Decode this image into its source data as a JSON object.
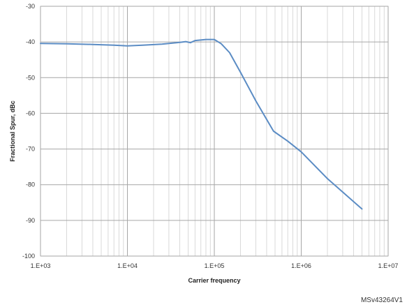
{
  "chart_data": {
    "type": "line",
    "xscale": "log",
    "xlim": [
      1000,
      10000000
    ],
    "ylim": [
      -100,
      -30
    ],
    "xlabel": "Carrier frequency",
    "ylabel": "Fractional Spur, dBc",
    "x_tick_labels": [
      "1.E+03",
      "1.E+04",
      "1.E+05",
      "1.E+06",
      "1.E+07"
    ],
    "y_tick_labels": [
      "-30",
      "-40",
      "-50",
      "-60",
      "-70",
      "-80",
      "-90",
      "-100"
    ],
    "grid": true,
    "legend": "none",
    "line_color": "#5b8cc4",
    "series": [
      {
        "x": [
          1000,
          2000,
          4000,
          7000,
          10000,
          15000,
          25000,
          40000,
          47000,
          53000,
          60000,
          80000,
          100000,
          120000,
          150000,
          200000,
          300000,
          480000,
          700000,
          1000000,
          2000000,
          5000000
        ],
        "y": [
          -40.4,
          -40.5,
          -40.7,
          -40.9,
          -41.1,
          -40.9,
          -40.6,
          -40.1,
          -39.9,
          -40.2,
          -39.6,
          -39.3,
          -39.3,
          -40.5,
          -43.0,
          -48.5,
          -56.5,
          -65.0,
          -67.8,
          -70.8,
          -78.3,
          -86.8
        ]
      }
    ],
    "ref_label": "MSv43264V1"
  }
}
